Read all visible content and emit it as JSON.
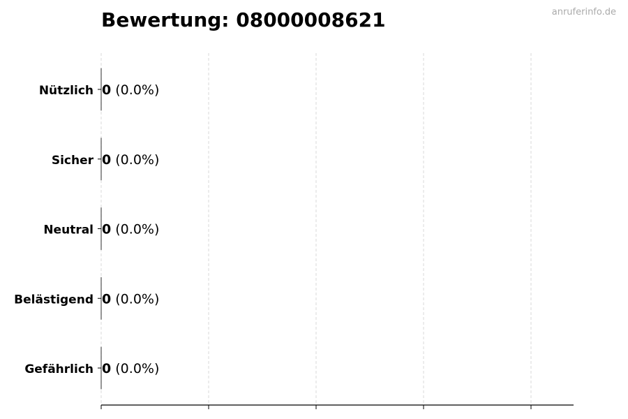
{
  "watermark": "anruferinfo.de",
  "chart_data": {
    "type": "bar",
    "orientation": "horizontal",
    "title": "Bewertung: 08000008621",
    "categories": [
      "Nützlich",
      "Sicher",
      "Neutral",
      "Belästigend",
      "Gefährlich"
    ],
    "values": [
      0,
      0,
      0,
      0,
      0
    ],
    "percent_labels": [
      "(0.0%)",
      "(0.0%)",
      "(0.0%)",
      "(0.0%)",
      "(0.0%)"
    ],
    "xlabel": "",
    "ylabel": "",
    "x_tick_labels": [],
    "grid": "vertical dashed",
    "legend": "none",
    "colors": {
      "grid": "#d9d9d9",
      "axis": "#000000",
      "bar_edge": "#000000"
    }
  }
}
